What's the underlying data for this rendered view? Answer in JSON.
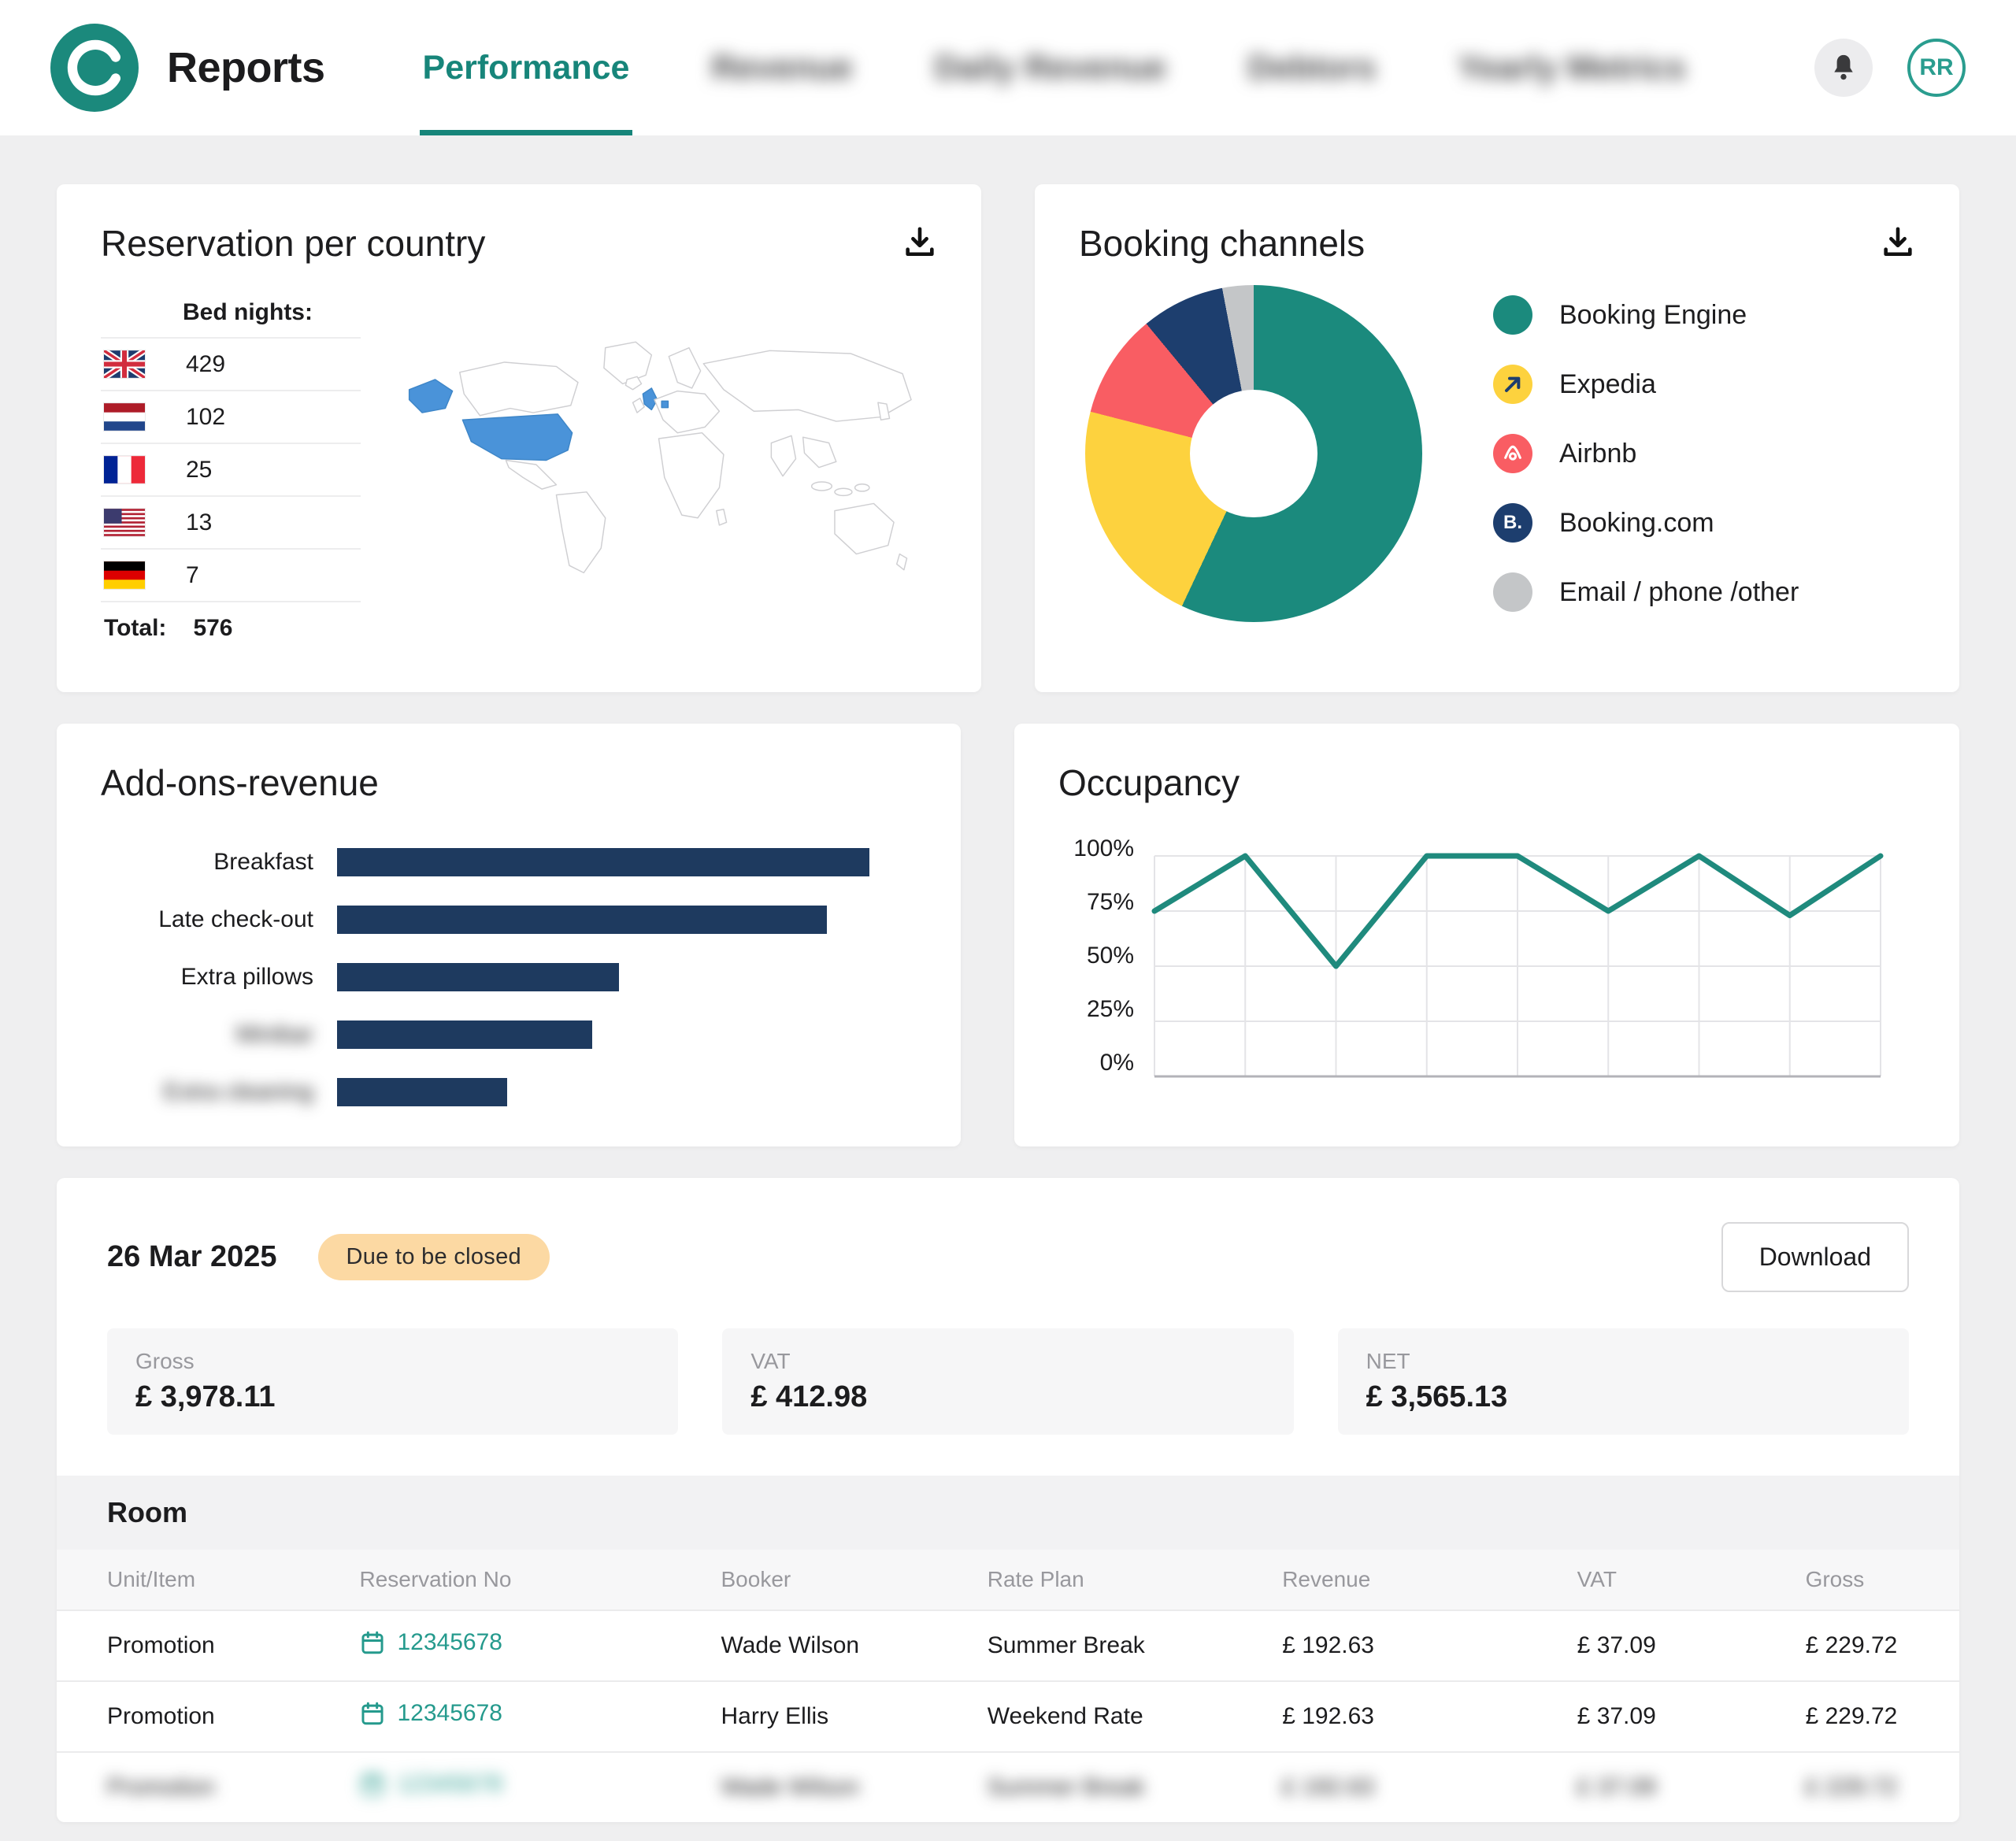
{
  "header": {
    "app_title": "Reports",
    "tabs": [
      {
        "label": "Performance",
        "active": true,
        "blurred": false
      },
      {
        "label": "Revenue",
        "active": false,
        "blurred": true
      },
      {
        "label": "Daily Revenue",
        "active": false,
        "blurred": true
      },
      {
        "label": "Debtors",
        "active": false,
        "blurred": true
      },
      {
        "label": "Yearly Metrics",
        "active": false,
        "blurred": true
      }
    ],
    "avatar_initials": "RR"
  },
  "reservations": {
    "title": "Reservation per country",
    "list_header": "Bed nights:",
    "rows": [
      {
        "flag": "gb",
        "country": "United Kingdom",
        "value": "429"
      },
      {
        "flag": "nl",
        "country": "Netherlands",
        "value": "102"
      },
      {
        "flag": "fr",
        "country": "France",
        "value": "25"
      },
      {
        "flag": "us",
        "country": "United States",
        "value": "13"
      },
      {
        "flag": "de",
        "country": "Germany",
        "value": "7"
      }
    ],
    "total_label": "Total:",
    "total_value": "576",
    "map_highlight_color": "#4a93d9"
  },
  "booking_channels": {
    "title": "Booking channels",
    "chart_data": {
      "type": "pie",
      "donut": true,
      "labels": [
        "Booking Engine",
        "Expedia",
        "Airbnb",
        "Booking.com",
        "Email / phone /other"
      ],
      "values": [
        57,
        22,
        10,
        8,
        3
      ],
      "colors": [
        "#1b8a7d",
        "#fdd23e",
        "#f95d63",
        "#1d3e6e",
        "#c4c6c8"
      ],
      "legend_position": "right"
    },
    "legend": [
      {
        "label": "Booking Engine",
        "icon": "dot",
        "color": "#1b8a7d"
      },
      {
        "label": "Expedia",
        "icon": "expedia",
        "color": "#fdd23e"
      },
      {
        "label": "Airbnb",
        "icon": "airbnb",
        "color": "#f95d63"
      },
      {
        "label": "Booking.com",
        "icon": "booking",
        "color": "#1d3e6e"
      },
      {
        "label": "Email / phone /other",
        "icon": "dot",
        "color": "#c4c6c8"
      }
    ]
  },
  "addons": {
    "title": "Add-ons-revenue",
    "chart_data": {
      "type": "bar",
      "orientation": "horizontal",
      "categories": [
        "Breakfast",
        "Late check-out",
        "Extra pillows",
        "Minibar",
        "Extra cleaning"
      ],
      "values": [
        100,
        92,
        53,
        48,
        32
      ],
      "blurred": [
        false,
        false,
        false,
        true,
        true
      ],
      "color": "#1e3a5f"
    }
  },
  "occupancy": {
    "title": "Occupancy",
    "chart_data": {
      "type": "line",
      "values": [
        75,
        100,
        50,
        100,
        100,
        75,
        100,
        73,
        100
      ],
      "y_ticks": [
        "100%",
        "75%",
        "50%",
        "25%",
        "0%"
      ],
      "ylim": [
        0,
        100
      ],
      "grid": true,
      "color": "#1f8a7d"
    }
  },
  "daily_report": {
    "date": "26 Mar 2025",
    "badge": "Due to be closed",
    "download_label": "Download",
    "stats": [
      {
        "label": "Gross",
        "value": "£ 3,978.11"
      },
      {
        "label": "VAT",
        "value": "£ 412.98"
      },
      {
        "label": "NET",
        "value": "£ 3,565.13"
      }
    ],
    "section_title": "Room",
    "table": {
      "columns": [
        "Unit/Item",
        "Reservation No",
        "Booker",
        "Rate Plan",
        "Revenue",
        "VAT",
        "Gross"
      ],
      "rows": [
        {
          "unit_item": "Promotion",
          "reservation_no": "12345678",
          "booker": "Wade Wilson",
          "rate_plan": "Summer Break",
          "revenue": "£ 192.63",
          "vat": "£ 37.09",
          "gross": "£ 229.72",
          "blurred": false
        },
        {
          "unit_item": "Promotion",
          "reservation_no": "12345678",
          "booker": "Harry Ellis",
          "rate_plan": "Weekend Rate",
          "revenue": "£ 192.63",
          "vat": "£ 37.09",
          "gross": "£ 229.72",
          "blurred": false
        },
        {
          "unit_item": "Promotion",
          "reservation_no": "12345678",
          "booker": "Wade Wilson",
          "rate_plan": "Summer Break",
          "revenue": "£ 192.63",
          "vat": "£ 37.09",
          "gross": "£ 229.72",
          "blurred": true
        }
      ]
    }
  }
}
